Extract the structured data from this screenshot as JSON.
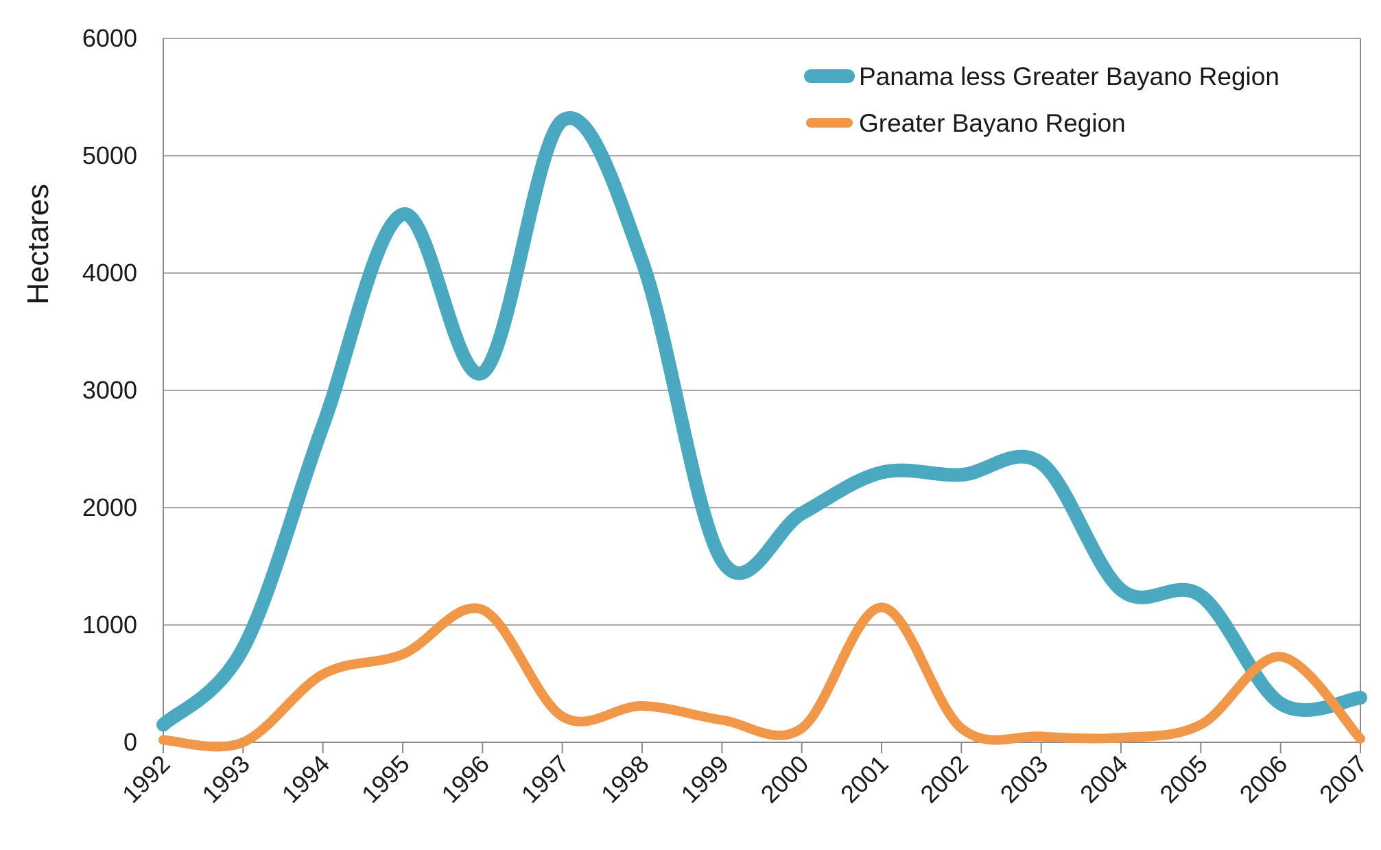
{
  "chart_data": {
    "type": "line",
    "title": "",
    "xlabel": "",
    "ylabel": "Hectares",
    "categories": [
      "1992",
      "1993",
      "1994",
      "1995",
      "1996",
      "1997",
      "1998",
      "1999",
      "2000",
      "2001",
      "2002",
      "2003",
      "2004",
      "2005",
      "2006",
      "2007"
    ],
    "yticks": [
      "0",
      "1000",
      "2000",
      "3000",
      "4000",
      "5000",
      "6000"
    ],
    "ylim": [
      0,
      6000
    ],
    "grid": true,
    "legend_position": "top-right",
    "series": [
      {
        "name": "Panama less Greater Bayano Region",
        "color": "#4aa8c0",
        "values": [
          150,
          800,
          2700,
          4500,
          3150,
          5300,
          4100,
          1550,
          1950,
          2300,
          2280,
          2380,
          1300,
          1250,
          330,
          380
        ]
      },
      {
        "name": "Greater Bayano Region",
        "color": "#f0974a",
        "values": [
          20,
          0,
          580,
          750,
          1130,
          220,
          310,
          190,
          120,
          1150,
          120,
          50,
          40,
          150,
          730,
          30
        ]
      }
    ]
  }
}
